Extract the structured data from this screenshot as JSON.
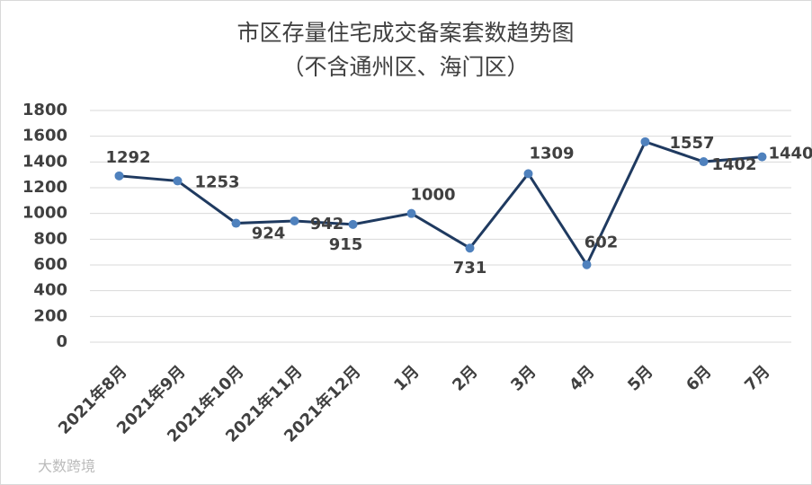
{
  "chart_data": {
    "type": "line",
    "title": "市区存量住宅成交备案套数趋势图",
    "subtitle": "（不含通州区、海门区）",
    "categories": [
      "2021年8月",
      "2021年9月",
      "2021年10月",
      "2021年11月",
      "2021年12月",
      "1月",
      "2月",
      "3月",
      "4月",
      "5月",
      "6月",
      "7月"
    ],
    "values": [
      1292,
      1253,
      924,
      942,
      915,
      1000,
      731,
      1309,
      602,
      1557,
      1402,
      1440
    ],
    "color": "#1f3a60",
    "marker_color": "#4f81bd",
    "ylim": [
      0,
      1800
    ],
    "yticks": [
      0,
      200,
      400,
      600,
      800,
      1000,
      1200,
      1400,
      1600,
      1800
    ],
    "grid": true,
    "watermark": "大数跨境"
  }
}
